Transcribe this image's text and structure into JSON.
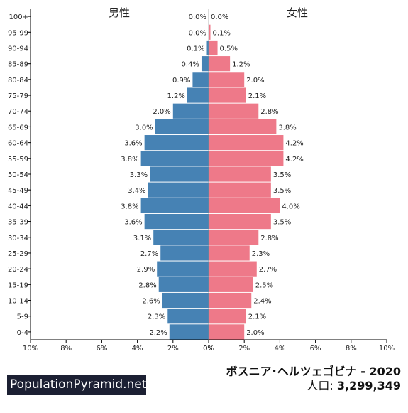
{
  "chart_data": {
    "type": "bar",
    "title": "ボスニア･ヘルツェゴビナ - 2020",
    "population_label": "人口:",
    "population_value": "3,299,349",
    "male_label": "男性",
    "female_label": "女性",
    "categories": [
      "100+",
      "95-99",
      "90-94",
      "85-89",
      "80-84",
      "75-79",
      "70-74",
      "65-69",
      "60-64",
      "55-59",
      "50-54",
      "45-49",
      "40-44",
      "35-39",
      "30-34",
      "25-29",
      "20-24",
      "15-19",
      "10-14",
      "5-9",
      "0-4"
    ],
    "series": [
      {
        "name": "男性",
        "values": [
          0.0,
          0.0,
          0.1,
          0.4,
          0.9,
          1.2,
          2.0,
          3.0,
          3.6,
          3.8,
          3.3,
          3.4,
          3.8,
          3.6,
          3.1,
          2.7,
          2.9,
          2.8,
          2.6,
          2.3,
          2.2
        ]
      },
      {
        "name": "女性",
        "values": [
          0.0,
          0.1,
          0.5,
          1.2,
          2.0,
          2.1,
          2.8,
          3.8,
          4.2,
          4.2,
          3.5,
          3.5,
          4.0,
          3.5,
          2.8,
          2.3,
          2.7,
          2.5,
          2.4,
          2.1,
          2.0
        ]
      }
    ],
    "xticks": [
      "10%",
      "8%",
      "6%",
      "4%",
      "2%",
      "0%",
      "0%",
      "2%",
      "4%",
      "6%",
      "8%",
      "10%"
    ],
    "xlim": [
      -10,
      10
    ],
    "colors": {
      "male": "#4682b4",
      "female": "#ee7989"
    }
  },
  "brand": "PopulationPyramid.net"
}
